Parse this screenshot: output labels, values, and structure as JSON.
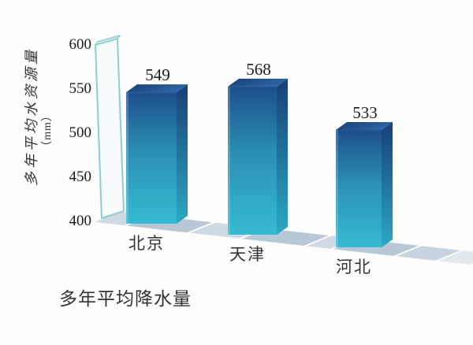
{
  "chart_data": {
    "type": "bar",
    "style": "3d-gradient-bars",
    "title": "",
    "categories": [
      "北京",
      "天津",
      "河北"
    ],
    "values": [
      549,
      568,
      533
    ],
    "value_labels": [
      "549",
      "568",
      "533"
    ],
    "yticks": [
      600,
      550,
      500,
      450,
      400
    ],
    "ylim": [
      400,
      600
    ],
    "ylabel": "多年平均水资源量",
    "ylabel_unit": "（mm）",
    "xlabel": "多年平均降水量",
    "grid": false,
    "legend": false
  },
  "colors": {
    "bar_front_top": "#1d4f8c",
    "bar_front_mid": "#2b8fb4",
    "bar_front_bottom": "#36bbd2",
    "bar_side_top": "#173f78",
    "bar_side_bottom": "#2ba9c4",
    "bar_top_left": "#1a3d72",
    "bar_top_right": "#2a67a6",
    "floor_tile": "#cfdae4",
    "floor_shadow": "#b9c8d6",
    "slab_edge": "#8fccd1",
    "text_number": "#1b1b1b",
    "text_cjk": "#333333",
    "background": "#fdfdfd"
  }
}
